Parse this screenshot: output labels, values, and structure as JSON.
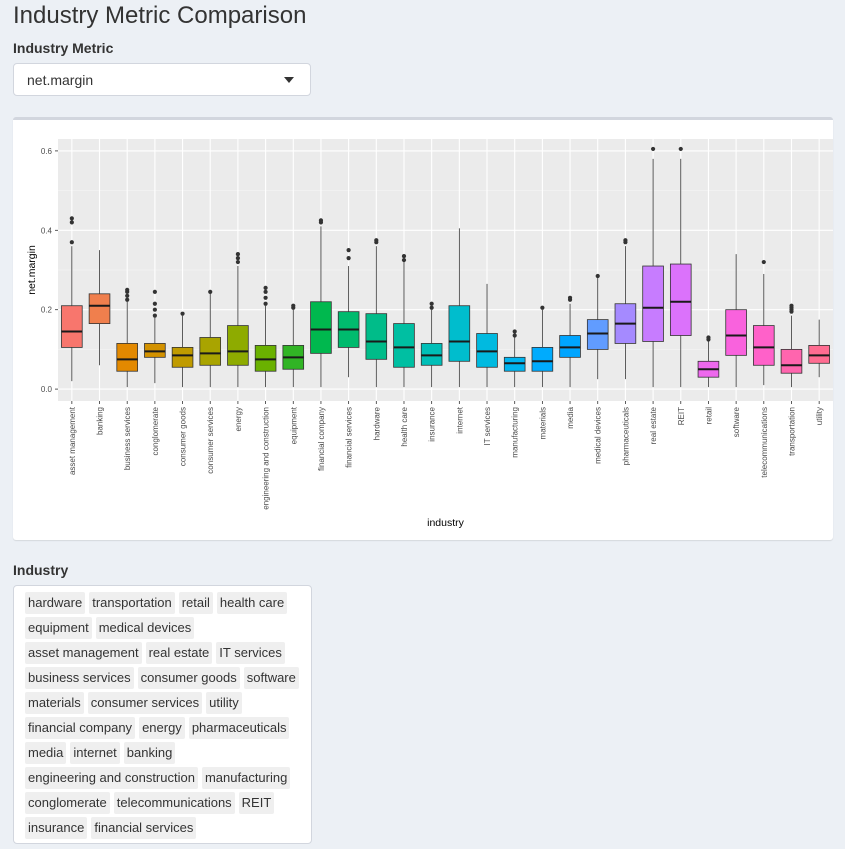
{
  "page_title": "Industry Metric Comparison",
  "metric_selector": {
    "label": "Industry Metric",
    "value": "net.margin"
  },
  "industry_input": {
    "label": "Industry",
    "tag_rows": [
      [
        "hardware",
        "transportation",
        "retail",
        "health care"
      ],
      [
        "equipment",
        "medical devices"
      ],
      [
        "asset management",
        "real estate",
        "IT services"
      ],
      [
        "business services",
        "consumer goods",
        "software"
      ],
      [
        "materials",
        "consumer services",
        "utility"
      ],
      [
        "financial company",
        "energy",
        "pharmaceuticals"
      ],
      [
        "media",
        "internet",
        "banking"
      ],
      [
        "engineering and construction",
        "manufacturing"
      ],
      [
        "conglomerate",
        "telecommunications",
        "REIT"
      ],
      [
        "insurance",
        "financial services"
      ]
    ]
  },
  "chart_data": {
    "type": "boxplot",
    "xlabel": "industry",
    "ylabel": "net.margin",
    "ylim": [
      -0.03,
      0.63
    ],
    "yticks": [
      0.0,
      0.2,
      0.4,
      0.6
    ],
    "ytick_labels": [
      "0.0",
      "0.2",
      "0.4",
      "0.6"
    ],
    "grid": true,
    "legend": "none",
    "categories": [
      "asset management",
      "banking",
      "business services",
      "conglomerate",
      "consumer goods",
      "consumer services",
      "energy",
      "engineering and construction",
      "equipment",
      "financial company",
      "financial services",
      "hardware",
      "health care",
      "insurance",
      "internet",
      "IT services",
      "manufacturing",
      "materials",
      "media",
      "medical devices",
      "pharmaceuticals",
      "real estate",
      "REIT",
      "retail",
      "software",
      "telecommunications",
      "transportation",
      "utility"
    ],
    "colors": [
      "#F8766D",
      "#F07F4D",
      "#E38900",
      "#D39200",
      "#C09B00",
      "#A9A400",
      "#8EAB00",
      "#6AB100",
      "#31B425",
      "#00B84E",
      "#00BB6E",
      "#00BC89",
      "#00BFA2",
      "#00BFB8",
      "#00BDCD",
      "#00BAE0",
      "#00B4EF",
      "#00ABFD",
      "#00A5FF",
      "#619CFF",
      "#A58AFF",
      "#C77CFF",
      "#DB72FB",
      "#ED68ED",
      "#F962DD",
      "#FF61C9",
      "#FF65AE",
      "#FF6C91"
    ],
    "boxes": [
      {
        "min": 0.02,
        "q1": 0.105,
        "median": 0.145,
        "q3": 0.21,
        "max": 0.36,
        "outliers": [
          0.37,
          0.42,
          0.43
        ]
      },
      {
        "min": 0.06,
        "q1": 0.165,
        "median": 0.21,
        "q3": 0.24,
        "max": 0.35,
        "outliers": []
      },
      {
        "min": 0.005,
        "q1": 0.045,
        "median": 0.075,
        "q3": 0.115,
        "max": 0.22,
        "outliers": [
          0.225,
          0.235,
          0.245,
          0.25
        ]
      },
      {
        "min": 0.015,
        "q1": 0.08,
        "median": 0.095,
        "q3": 0.115,
        "max": 0.18,
        "outliers": [
          0.185,
          0.2,
          0.215,
          0.245
        ]
      },
      {
        "min": 0.005,
        "q1": 0.055,
        "median": 0.085,
        "q3": 0.105,
        "max": 0.185,
        "outliers": [
          0.19
        ]
      },
      {
        "min": 0.005,
        "q1": 0.06,
        "median": 0.09,
        "q3": 0.13,
        "max": 0.245,
        "outliers": [
          0.245
        ]
      },
      {
        "min": 0.005,
        "q1": 0.06,
        "median": 0.095,
        "q3": 0.16,
        "max": 0.31,
        "outliers": [
          0.32,
          0.33,
          0.34
        ]
      },
      {
        "min": 0.005,
        "q1": 0.045,
        "median": 0.075,
        "q3": 0.11,
        "max": 0.21,
        "outliers": [
          0.215,
          0.23,
          0.245,
          0.255
        ]
      },
      {
        "min": 0.005,
        "q1": 0.05,
        "median": 0.08,
        "q3": 0.11,
        "max": 0.2,
        "outliers": [
          0.205,
          0.21
        ]
      },
      {
        "min": 0.005,
        "q1": 0.09,
        "median": 0.15,
        "q3": 0.22,
        "max": 0.41,
        "outliers": [
          0.42,
          0.425
        ]
      },
      {
        "min": 0.03,
        "q1": 0.105,
        "median": 0.15,
        "q3": 0.195,
        "max": 0.31,
        "outliers": [
          0.33,
          0.35
        ]
      },
      {
        "min": 0.005,
        "q1": 0.075,
        "median": 0.12,
        "q3": 0.19,
        "max": 0.36,
        "outliers": [
          0.37,
          0.375
        ]
      },
      {
        "min": 0.005,
        "q1": 0.055,
        "median": 0.105,
        "q3": 0.165,
        "max": 0.32,
        "outliers": [
          0.325,
          0.335
        ]
      },
      {
        "min": 0.005,
        "q1": 0.06,
        "median": 0.085,
        "q3": 0.115,
        "max": 0.2,
        "outliers": [
          0.205,
          0.215
        ]
      },
      {
        "min": 0.005,
        "q1": 0.07,
        "median": 0.12,
        "q3": 0.21,
        "max": 0.405,
        "outliers": []
      },
      {
        "min": 0.005,
        "q1": 0.055,
        "median": 0.095,
        "q3": 0.14,
        "max": 0.265,
        "outliers": []
      },
      {
        "min": 0.005,
        "q1": 0.045,
        "median": 0.065,
        "q3": 0.08,
        "max": 0.13,
        "outliers": [
          0.135,
          0.145
        ]
      },
      {
        "min": 0.005,
        "q1": 0.045,
        "median": 0.07,
        "q3": 0.105,
        "max": 0.2,
        "outliers": [
          0.205
        ]
      },
      {
        "min": 0.005,
        "q1": 0.08,
        "median": 0.105,
        "q3": 0.135,
        "max": 0.215,
        "outliers": [
          0.225,
          0.23
        ]
      },
      {
        "min": 0.025,
        "q1": 0.1,
        "median": 0.14,
        "q3": 0.175,
        "max": 0.28,
        "outliers": [
          0.285
        ]
      },
      {
        "min": 0.025,
        "q1": 0.115,
        "median": 0.165,
        "q3": 0.215,
        "max": 0.36,
        "outliers": [
          0.37,
          0.375
        ]
      },
      {
        "min": 0.005,
        "q1": 0.12,
        "median": 0.205,
        "q3": 0.31,
        "max": 0.58,
        "outliers": [
          0.605
        ]
      },
      {
        "min": 0.005,
        "q1": 0.135,
        "median": 0.22,
        "q3": 0.315,
        "max": 0.58,
        "outliers": [
          0.605
        ]
      },
      {
        "min": 0.005,
        "q1": 0.03,
        "median": 0.05,
        "q3": 0.07,
        "max": 0.12,
        "outliers": [
          0.125,
          0.13
        ]
      },
      {
        "min": 0.005,
        "q1": 0.085,
        "median": 0.135,
        "q3": 0.2,
        "max": 0.34,
        "outliers": []
      },
      {
        "min": 0.01,
        "q1": 0.06,
        "median": 0.105,
        "q3": 0.16,
        "max": 0.29,
        "outliers": [
          0.32
        ]
      },
      {
        "min": 0.005,
        "q1": 0.04,
        "median": 0.06,
        "q3": 0.1,
        "max": 0.185,
        "outliers": [
          0.195,
          0.2,
          0.205,
          0.21
        ]
      },
      {
        "min": 0.03,
        "q1": 0.065,
        "median": 0.085,
        "q3": 0.11,
        "max": 0.175,
        "outliers": []
      }
    ]
  }
}
